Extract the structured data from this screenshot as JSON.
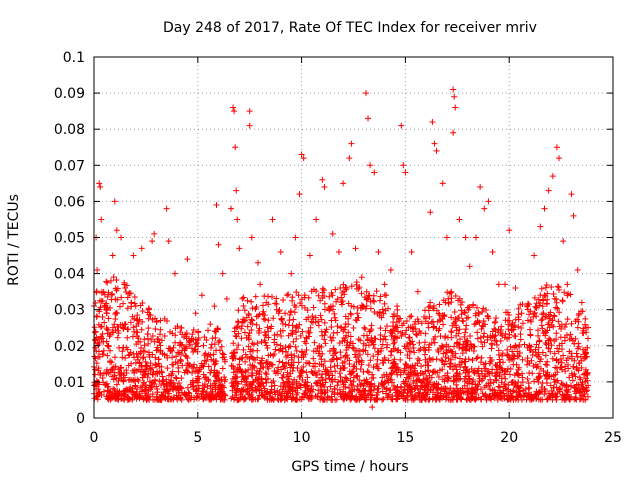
{
  "chart_data": {
    "type": "scatter",
    "title": "Day 248 of 2017, Rate Of TEC Index for receiver mriv",
    "xlabel": "GPS time / hours",
    "ylabel": "ROTI / TECUs",
    "xlim": [
      0,
      25
    ],
    "ylim": [
      0,
      0.1
    ],
    "xticks": [
      0,
      5,
      10,
      15,
      20,
      25
    ],
    "xtick_labels": [
      "0",
      "5",
      "10",
      "15",
      "20",
      "25"
    ],
    "yticks": [
      0,
      0.01,
      0.02,
      0.03,
      0.04,
      0.05,
      0.06,
      0.07,
      0.08,
      0.09,
      0.1
    ],
    "ytick_labels": [
      "0",
      "0.01",
      "0.02",
      "0.03",
      "0.04",
      "0.05",
      "0.06",
      "0.07",
      "0.08",
      "0.09",
      "0.1"
    ],
    "grid": true,
    "marker": "+",
    "color": "#ff0000",
    "series": [
      {
        "name": "ROTI",
        "points": [
          [
            0.05,
            0.012
          ],
          [
            0.1,
            0.05
          ],
          [
            0.15,
            0.041
          ],
          [
            0.25,
            0.065
          ],
          [
            0.3,
            0.064
          ],
          [
            0.35,
            0.055
          ],
          [
            0.5,
            0.031
          ],
          [
            0.7,
            0.02
          ],
          [
            0.9,
            0.045
          ],
          [
            1.0,
            0.06
          ],
          [
            1.1,
            0.052
          ],
          [
            1.3,
            0.05
          ],
          [
            1.5,
            0.036
          ],
          [
            1.8,
            0.032
          ],
          [
            1.9,
            0.045
          ],
          [
            2.1,
            0.027
          ],
          [
            2.3,
            0.047
          ],
          [
            2.6,
            0.022
          ],
          [
            2.8,
            0.049
          ],
          [
            2.9,
            0.051
          ],
          [
            3.2,
            0.027
          ],
          [
            3.5,
            0.058
          ],
          [
            3.6,
            0.049
          ],
          [
            3.9,
            0.04
          ],
          [
            4.2,
            0.025
          ],
          [
            4.5,
            0.044
          ],
          [
            4.7,
            0.022
          ],
          [
            4.9,
            0.029
          ],
          [
            5.2,
            0.034
          ],
          [
            5.6,
            0.026
          ],
          [
            5.8,
            0.031
          ],
          [
            5.9,
            0.059
          ],
          [
            6.0,
            0.048
          ],
          [
            6.2,
            0.04
          ],
          [
            6.4,
            0.033
          ],
          [
            6.6,
            0.058
          ],
          [
            6.7,
            0.086
          ],
          [
            6.75,
            0.085
          ],
          [
            6.8,
            0.075
          ],
          [
            6.85,
            0.063
          ],
          [
            6.9,
            0.055
          ],
          [
            7.0,
            0.047
          ],
          [
            7.5,
            0.085
          ],
          [
            7.5,
            0.081
          ],
          [
            7.6,
            0.05
          ],
          [
            7.9,
            0.043
          ],
          [
            8.0,
            0.037
          ],
          [
            8.3,
            0.032
          ],
          [
            8.6,
            0.055
          ],
          [
            8.8,
            0.03
          ],
          [
            9.0,
            0.046
          ],
          [
            9.3,
            0.034
          ],
          [
            9.5,
            0.04
          ],
          [
            9.7,
            0.05
          ],
          [
            9.9,
            0.062
          ],
          [
            10.0,
            0.073
          ],
          [
            10.1,
            0.072
          ],
          [
            10.4,
            0.045
          ],
          [
            10.7,
            0.055
          ],
          [
            11.0,
            0.066
          ],
          [
            11.1,
            0.064
          ],
          [
            11.5,
            0.051
          ],
          [
            11.8,
            0.046
          ],
          [
            12.0,
            0.065
          ],
          [
            12.3,
            0.072
          ],
          [
            12.4,
            0.076
          ],
          [
            12.6,
            0.047
          ],
          [
            12.9,
            0.039
          ],
          [
            13.1,
            0.09
          ],
          [
            13.2,
            0.083
          ],
          [
            13.3,
            0.07
          ],
          [
            13.5,
            0.068
          ],
          [
            13.7,
            0.046
          ],
          [
            14.0,
            0.037
          ],
          [
            14.3,
            0.041
          ],
          [
            14.6,
            0.031
          ],
          [
            14.8,
            0.081
          ],
          [
            14.9,
            0.07
          ],
          [
            15.0,
            0.068
          ],
          [
            15.3,
            0.046
          ],
          [
            15.6,
            0.035
          ],
          [
            15.9,
            0.028
          ],
          [
            16.2,
            0.057
          ],
          [
            16.3,
            0.082
          ],
          [
            16.4,
            0.076
          ],
          [
            16.5,
            0.074
          ],
          [
            16.8,
            0.065
          ],
          [
            17.0,
            0.05
          ],
          [
            17.3,
            0.091
          ],
          [
            17.35,
            0.089
          ],
          [
            17.4,
            0.086
          ],
          [
            17.3,
            0.079
          ],
          [
            17.6,
            0.055
          ],
          [
            17.9,
            0.05
          ],
          [
            18.1,
            0.042
          ],
          [
            18.4,
            0.05
          ],
          [
            18.6,
            0.064
          ],
          [
            18.8,
            0.058
          ],
          [
            19.0,
            0.06
          ],
          [
            19.2,
            0.046
          ],
          [
            19.5,
            0.037
          ],
          [
            19.8,
            0.037
          ],
          [
            20.0,
            0.052
          ],
          [
            20.3,
            0.036
          ],
          [
            20.6,
            0.029
          ],
          [
            20.9,
            0.027
          ],
          [
            21.2,
            0.045
          ],
          [
            21.5,
            0.053
          ],
          [
            21.7,
            0.058
          ],
          [
            21.9,
            0.063
          ],
          [
            22.1,
            0.067
          ],
          [
            22.3,
            0.075
          ],
          [
            22.4,
            0.072
          ],
          [
            22.6,
            0.049
          ],
          [
            22.8,
            0.037
          ],
          [
            23.0,
            0.062
          ],
          [
            23.1,
            0.056
          ],
          [
            23.3,
            0.041
          ],
          [
            23.5,
            0.032
          ],
          [
            23.7,
            0.025
          ],
          [
            0.1,
            0.008
          ],
          [
            0.6,
            0.006
          ],
          [
            1.2,
            0.007
          ],
          [
            2.0,
            0.009
          ],
          [
            2.7,
            0.006
          ],
          [
            3.4,
            0.008
          ],
          [
            4.1,
            0.007
          ],
          [
            4.8,
            0.008
          ],
          [
            5.4,
            0.006
          ],
          [
            6.1,
            0.009
          ],
          [
            6.8,
            0.011
          ],
          [
            7.4,
            0.008
          ],
          [
            8.1,
            0.007
          ],
          [
            8.7,
            0.009
          ],
          [
            9.4,
            0.008
          ],
          [
            10.2,
            0.007
          ],
          [
            10.9,
            0.009
          ],
          [
            11.6,
            0.008
          ],
          [
            12.2,
            0.006
          ],
          [
            12.8,
            0.007
          ],
          [
            13.4,
            0.003
          ],
          [
            14.1,
            0.008
          ],
          [
            14.7,
            0.007
          ],
          [
            15.5,
            0.009
          ],
          [
            16.1,
            0.008
          ],
          [
            16.7,
            0.006
          ],
          [
            17.5,
            0.007
          ],
          [
            18.2,
            0.008
          ],
          [
            18.9,
            0.009
          ],
          [
            19.6,
            0.007
          ],
          [
            20.2,
            0.005
          ],
          [
            20.8,
            0.008
          ],
          [
            21.4,
            0.007
          ],
          [
            22.0,
            0.009
          ],
          [
            22.7,
            0.006
          ],
          [
            23.4,
            0.008
          ],
          [
            23.8,
            0.009
          ]
        ]
      }
    ],
    "dense_band": {
      "note": "Dense cluster of ROTI values between roughly 0.005 and 0.03 across 0-23.8 h, with a gap near 6.5 h",
      "x_range": [
        0.0,
        23.8
      ],
      "y_range": [
        0.005,
        0.03
      ],
      "profile_hours": [
        0,
        1,
        2,
        3,
        4,
        5,
        6,
        6.5,
        7,
        8,
        9,
        10,
        11,
        12,
        13,
        14,
        15,
        16,
        17,
        18,
        19,
        20,
        21,
        22,
        23,
        23.8
      ],
      "profile_upper": [
        0.035,
        0.04,
        0.035,
        0.028,
        0.027,
        0.024,
        0.025,
        0.012,
        0.035,
        0.034,
        0.035,
        0.036,
        0.036,
        0.037,
        0.038,
        0.035,
        0.027,
        0.032,
        0.036,
        0.032,
        0.03,
        0.03,
        0.033,
        0.038,
        0.035,
        0.028
      ]
    }
  }
}
